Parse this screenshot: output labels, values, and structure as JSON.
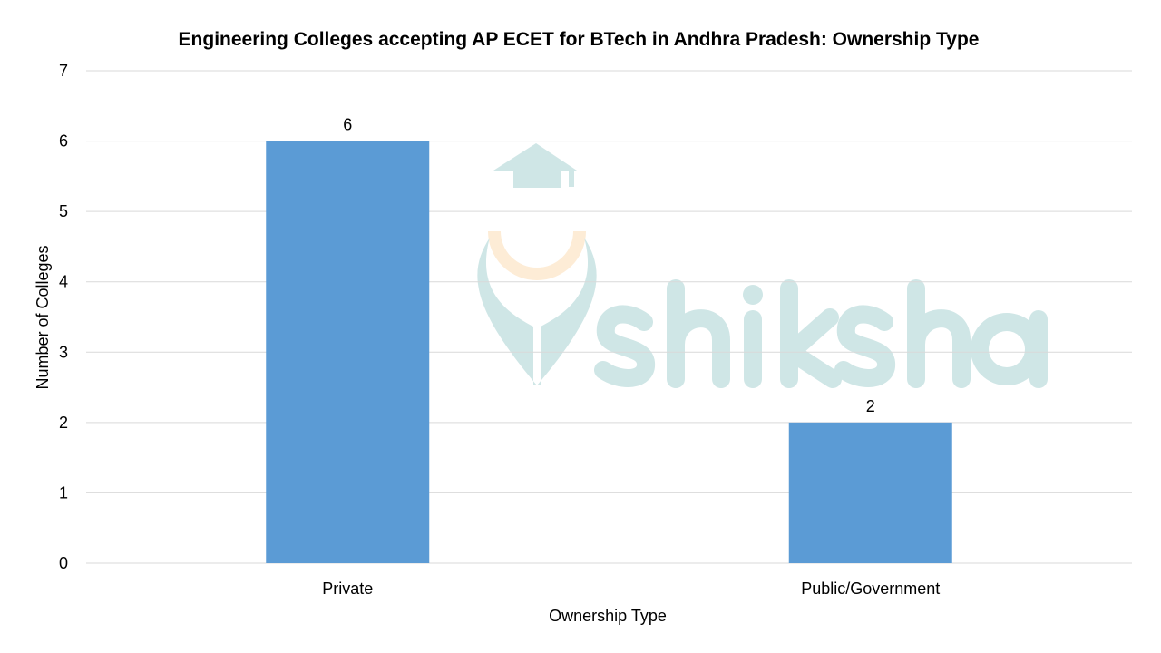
{
  "chart_data": {
    "type": "bar",
    "title": "Engineering Colleges accepting AP ECET for BTech in Andhra Pradesh: Ownership Type",
    "xlabel": "Ownership Type",
    "ylabel": "Number of Colleges",
    "categories": [
      "Private",
      "Public/Government"
    ],
    "values": [
      6,
      2
    ],
    "ylim": [
      0,
      7
    ],
    "yticks": [
      0,
      1,
      2,
      3,
      4,
      5,
      6,
      7
    ],
    "grid": true,
    "data_labels": true,
    "legend": "none",
    "colors": {
      "bar": "#5b9bd5",
      "grid": "#d9d9d9",
      "watermark": "#cfe6e6",
      "watermark_accent": "#fdecd6"
    }
  },
  "watermark": {
    "text": "shiksha"
  }
}
